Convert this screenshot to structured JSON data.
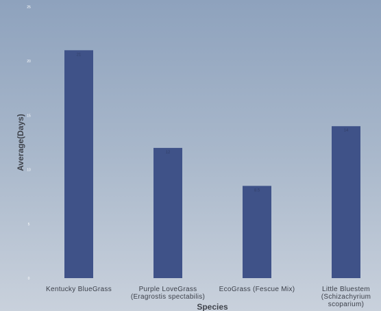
{
  "chart_data": {
    "type": "bar",
    "title": "",
    "xlabel": "Species",
    "ylabel": "Average(Days)",
    "categories": [
      [
        "Kentucky BlueGrass"
      ],
      [
        "Purple LoveGrass",
        "(Eragrostis spectabilis)"
      ],
      [
        "EcoGrass (Fescue Mix)"
      ],
      [
        "Little Bluestem",
        "(Schizachyrium",
        "scoparium)"
      ]
    ],
    "values": [
      21,
      12,
      8.5,
      14
    ],
    "data_labels": [
      "21",
      "12",
      "8.5",
      "14"
    ],
    "ylim": [
      0,
      25
    ],
    "yticks": [
      0,
      5,
      10,
      15,
      20,
      25
    ],
    "grid": false,
    "legend": "none",
    "bar_color": "#3f5288"
  }
}
